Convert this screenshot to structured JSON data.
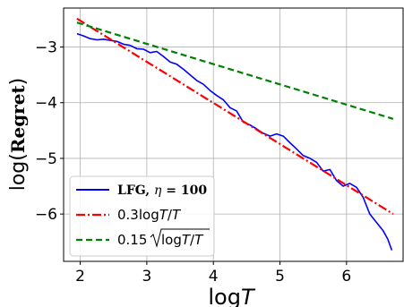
{
  "chart_data": {
    "type": "line",
    "xlabel": "logT",
    "ylabel": "log(Regret)",
    "xlim": [
      1.75,
      6.85
    ],
    "ylim": [
      -6.85,
      -2.3
    ],
    "xticks": [
      2,
      3,
      4,
      5,
      6
    ],
    "yticks": [
      -3,
      -4,
      -5,
      -6
    ],
    "x_tick_labels": [
      "2",
      "3",
      "4",
      "5",
      "6"
    ],
    "y_tick_labels": [
      "−3",
      "−4",
      "−5",
      "−6"
    ],
    "grid": true,
    "legend_position": "lower-left",
    "series": [
      {
        "name": "LFG, η = 100",
        "color": "#0000ff",
        "style": "solid",
        "x": [
          1.95,
          2.05,
          2.15,
          2.25,
          2.35,
          2.45,
          2.55,
          2.65,
          2.75,
          2.85,
          2.95,
          3.05,
          3.15,
          3.25,
          3.35,
          3.45,
          3.55,
          3.65,
          3.75,
          3.85,
          3.95,
          4.05,
          4.15,
          4.25,
          4.35,
          4.45,
          4.55,
          4.65,
          4.75,
          4.85,
          4.95,
          5.05,
          5.15,
          5.25,
          5.35,
          5.45,
          5.55,
          5.65,
          5.75,
          5.85,
          5.95,
          6.05,
          6.15,
          6.25,
          6.35,
          6.45,
          6.55,
          6.62,
          6.68
        ],
        "y": [
          -2.76,
          -2.8,
          -2.85,
          -2.87,
          -2.86,
          -2.88,
          -2.9,
          -2.95,
          -2.97,
          -3.03,
          -3.04,
          -3.1,
          -3.08,
          -3.17,
          -3.27,
          -3.31,
          -3.4,
          -3.5,
          -3.6,
          -3.67,
          -3.78,
          -3.87,
          -3.95,
          -4.09,
          -4.15,
          -4.35,
          -4.4,
          -4.47,
          -4.55,
          -4.6,
          -4.56,
          -4.6,
          -4.72,
          -4.83,
          -4.95,
          -5.0,
          -5.07,
          -5.23,
          -5.2,
          -5.4,
          -5.5,
          -5.45,
          -5.52,
          -5.7,
          -6.0,
          -6.15,
          -6.3,
          -6.45,
          -6.65
        ]
      },
      {
        "name": "0.3logT/T",
        "color": "#ff0000",
        "style": "dashdot",
        "x": [
          1.95,
          6.7
        ],
        "y": [
          -2.49,
          -6.0
        ]
      },
      {
        "name": "0.15√(logT/T)",
        "color": "#008000",
        "style": "dashed",
        "x": [
          1.95,
          6.7
        ],
        "y": [
          -2.56,
          -4.29
        ]
      }
    ]
  }
}
